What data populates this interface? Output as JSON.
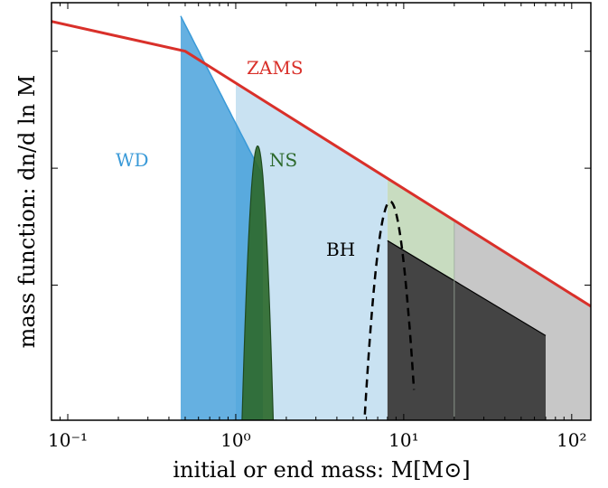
{
  "chart_data": {
    "type": "area",
    "title": "",
    "xlabel": "initial or end mass: M[M⊙]",
    "ylabel": "mass function: dn/d ln M",
    "xscale": "log",
    "yscale": "log",
    "xlim": [
      0.08,
      130
    ],
    "ylim": [
      7e-05,
      0.26
    ],
    "x_ticks": [
      {
        "value": 0.1,
        "label": "10⁻¹"
      },
      {
        "value": 1,
        "label": "10⁰"
      },
      {
        "value": 10,
        "label": "10¹"
      },
      {
        "value": 100,
        "label": "10²"
      }
    ],
    "y_ticks": [
      0.001,
      0.01,
      0.1
    ],
    "grid": false,
    "colors": {
      "zams": "#d9302a",
      "wd": "#3a9ad8",
      "wd_light": "#c9e2f2",
      "ns": "#2e6a2e",
      "bh_dark": "#444444",
      "bh_light": "#c7c7c7",
      "bh_green": "#c8dcc0"
    },
    "series": [
      {
        "name": "ZAMS",
        "kind": "line",
        "points": [
          [
            0.08,
            0.18
          ],
          [
            0.5,
            0.1
          ],
          [
            130,
            0.00066
          ]
        ]
      },
      {
        "name": "WD",
        "kind": "fill",
        "x_range": [
          0.47,
          1.45
        ],
        "peak": 0.2,
        "decay_exponent": -2.8
      },
      {
        "name": "NS",
        "kind": "fill",
        "center": 1.35,
        "sigma": 0.13,
        "peak": 0.0155
      },
      {
        "name": "BH",
        "kind": "dashed",
        "center": 8.3,
        "sigma": 1.0,
        "peak": 0.0052,
        "x_range": [
          4.7,
          11.5
        ]
      }
    ],
    "regions": [
      {
        "name": "wd-progenitors",
        "x_range": [
          1,
          8
        ]
      },
      {
        "name": "bh-remnants",
        "x_range": [
          8,
          70
        ],
        "top": [
          [
            8,
            0.0024
          ],
          [
            70,
            0.00037
          ]
        ]
      },
      {
        "name": "bh-progenitors",
        "x_range": [
          8,
          130
        ]
      }
    ]
  }
}
